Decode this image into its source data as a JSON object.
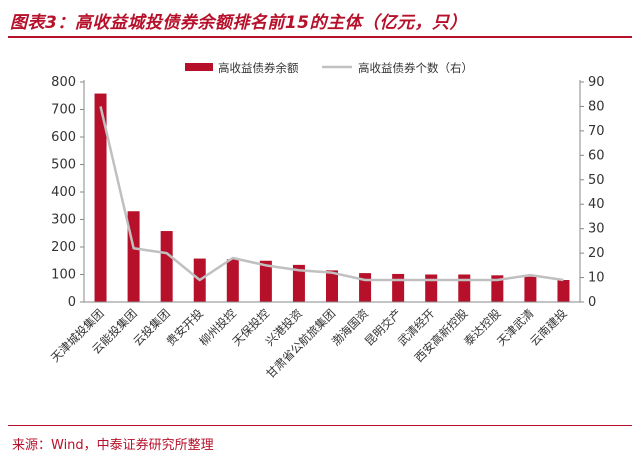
{
  "figure_title": "图表3：高收益城投债券余额排名前15的主体（亿元，只）",
  "source": "来源：Wind，中泰证券研究所整理",
  "colors": {
    "accent": "#b7102a",
    "bar": "#b7102a",
    "line": "#c0c0c0"
  },
  "chart_data": {
    "type": "bar",
    "title": "",
    "xlabel": "",
    "ylabel": "",
    "categories": [
      "天津城投集团",
      "云能投集团",
      "云投集团",
      "贵安开投",
      "柳州投控",
      "天保投控",
      "兴港投资",
      "甘肃省公航旅集团",
      "渤海国资",
      "昆明交产",
      "武清经开",
      "西安高新控股",
      "泰达控股",
      "天津武清",
      "云南建投"
    ],
    "series": [
      {
        "name": "高收益债券余额",
        "type": "bar",
        "axis": "left",
        "values": [
          758,
          330,
          258,
          158,
          155,
          150,
          135,
          115,
          105,
          102,
          100,
          100,
          97,
          92,
          80
        ]
      },
      {
        "name": "高收益债券个数（右）",
        "type": "line",
        "axis": "right",
        "values": [
          80,
          22,
          20,
          9,
          18,
          15,
          13,
          12,
          9,
          9,
          9,
          9,
          9,
          11,
          9
        ]
      }
    ],
    "ylim": [
      0,
      800
    ],
    "yticks": [
      "0",
      "100",
      "200",
      "300",
      "400",
      "500",
      "600",
      "700",
      "800"
    ],
    "ylim_right": [
      0,
      90
    ],
    "yticks_right": [
      "0",
      "10",
      "20",
      "30",
      "40",
      "50",
      "60",
      "70",
      "80",
      "90"
    ],
    "legend": "top"
  }
}
